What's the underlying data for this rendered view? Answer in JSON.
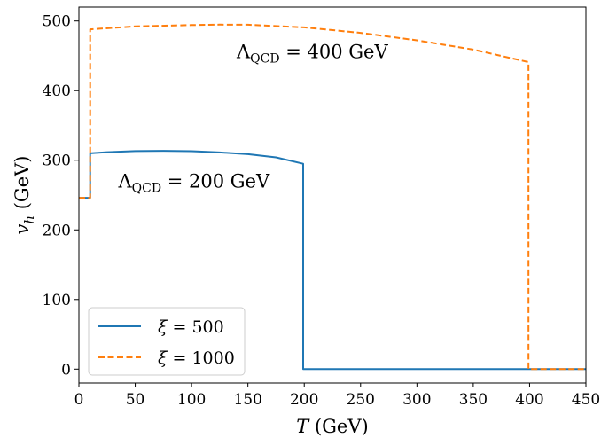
{
  "chart_data": {
    "type": "line",
    "xlabel": "T (GeV)",
    "ylabel": "v_h (GeV)",
    "xlim": [
      0,
      450
    ],
    "ylim": [
      -20,
      520
    ],
    "xticks": [
      0,
      50,
      100,
      150,
      200,
      250,
      300,
      350,
      400,
      450
    ],
    "yticks": [
      0,
      100,
      200,
      300,
      400,
      500
    ],
    "grid": false,
    "legend_position": "lower-left",
    "series": [
      {
        "name": "ξ = 500",
        "color": "#1f77b4",
        "style": "solid",
        "points": [
          [
            0,
            246
          ],
          [
            10,
            246
          ],
          [
            10,
            310
          ],
          [
            25,
            311.6
          ],
          [
            50,
            313.2
          ],
          [
            75,
            313.5
          ],
          [
            100,
            313
          ],
          [
            125,
            311.3
          ],
          [
            150,
            308.7
          ],
          [
            175,
            304.1
          ],
          [
            199,
            295
          ],
          [
            199,
            0
          ],
          [
            200,
            0
          ],
          [
            450,
            0
          ]
        ]
      },
      {
        "name": "ξ = 1000",
        "color": "#ff7f0e",
        "style": "dashed",
        "points": [
          [
            0,
            246
          ],
          [
            10,
            246
          ],
          [
            10,
            488
          ],
          [
            50,
            492.2
          ],
          [
            100,
            494.2
          ],
          [
            125,
            494.8
          ],
          [
            150,
            494.6
          ],
          [
            200,
            490.8
          ],
          [
            250,
            483
          ],
          [
            300,
            472.2
          ],
          [
            350,
            459
          ],
          [
            399,
            441
          ],
          [
            399,
            0
          ],
          [
            400,
            0
          ],
          [
            450,
            0
          ]
        ]
      }
    ],
    "annotations": [
      {
        "base": "Λ",
        "sub": "QCD",
        "rest": " = 400 GeV",
        "x": 140,
        "y": 447
      },
      {
        "base": "Λ",
        "sub": "QCD",
        "rest": " = 200 GeV",
        "x": 35,
        "y": 261
      }
    ]
  }
}
